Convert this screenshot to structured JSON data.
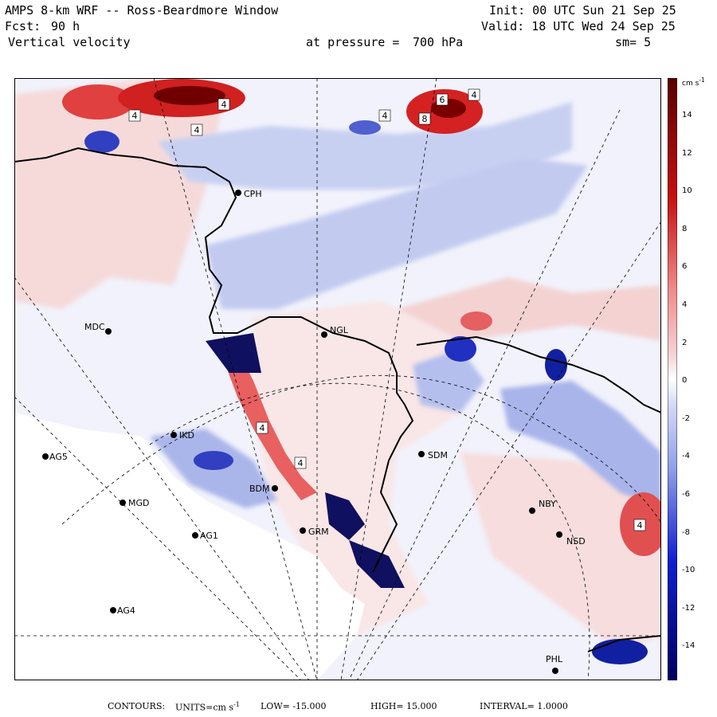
{
  "header": {
    "model": "AMPS 8-km WRF -- Ross-Beardmore Window",
    "forecast_label": "Fcst:",
    "forecast_hours": "90 h",
    "field": "Vertical velocity",
    "init": "Init: 00 UTC Sun 21 Sep 25",
    "valid": "Valid: 18 UTC Wed 24 Sep 25",
    "pressure_label": "at pressure =",
    "pressure_value": "700 hPa",
    "smoothing": "sm= 5"
  },
  "colorbar": {
    "units": "cm s",
    "units_exp": "-1",
    "ticks": [
      "14",
      "12",
      "10",
      "8",
      "6",
      "4",
      "2",
      "0",
      "-2",
      "-4",
      "-6",
      "-8",
      "-10",
      "-12",
      "-14"
    ],
    "colors": {
      "max": "#5a0000",
      "strong_pos": "#c81010",
      "mid_pos": "#f08a8a",
      "weak_pos": "#f6d4d4",
      "zero": "#ffffff",
      "weak_neg": "#d6dcf6",
      "mid_neg": "#8f9ee8",
      "strong_neg": "#1020d0",
      "min": "#000060"
    }
  },
  "stations": [
    "CPH",
    "MDC",
    "NGL",
    "IKD",
    "AG5",
    "SDM",
    "MGD",
    "BDM",
    "GRM",
    "AG1",
    "NBY",
    "NSD",
    "AG4",
    "PHL"
  ],
  "contour_labels": [
    "4",
    "4",
    "4",
    "4",
    "6",
    "8",
    "4",
    "4",
    "4",
    "4"
  ],
  "footer": {
    "contours_label": "CONTOURS:",
    "units_label": "UNITS=cm s",
    "units_exp": "-1",
    "low": "LOW= -15.000",
    "high": "HIGH= 15.000",
    "interval": "INTERVAL= 1.0000"
  }
}
